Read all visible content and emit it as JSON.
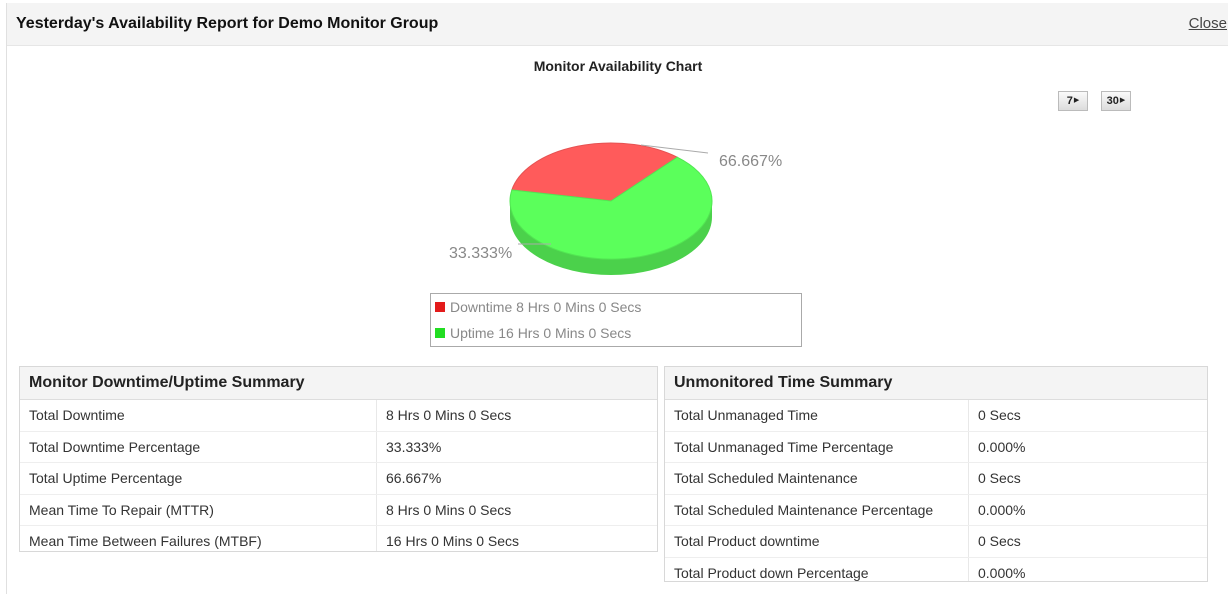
{
  "header": {
    "title": "Yesterday's Availability Report for Demo Monitor Group",
    "close_label": "Close"
  },
  "chart_title": "Monitor Availability Chart",
  "range_buttons": [
    "7",
    "30"
  ],
  "chart_data": {
    "type": "pie",
    "title": "Monitor Availability Chart",
    "slices": [
      {
        "name": "Downtime 8 Hrs 0 Mins 0 Secs",
        "value": 33.333,
        "label": "33.333%",
        "color": "#ff5b5b"
      },
      {
        "name": "Uptime 16 Hrs 0 Mins 0 Secs",
        "value": 66.667,
        "label": "66.667%",
        "color": "#5bff5b"
      }
    ],
    "legend_placement": "bottom"
  },
  "colors": {
    "downtime_legend": "#e31b1b",
    "uptime_legend": "#22dd22"
  },
  "downtime_summary": {
    "title": "Monitor Downtime/Uptime Summary",
    "rows": [
      {
        "label": "Total Downtime",
        "value": "8 Hrs 0 Mins 0 Secs"
      },
      {
        "label": "Total Downtime Percentage",
        "value": "33.333%"
      },
      {
        "label": "Total Uptime Percentage",
        "value": "66.667%"
      },
      {
        "label": "Mean Time To Repair (MTTR)",
        "value": "8 Hrs 0 Mins 0 Secs"
      },
      {
        "label": "Mean Time Between Failures (MTBF)",
        "value": "16 Hrs 0 Mins 0 Secs"
      }
    ]
  },
  "unmonitored_summary": {
    "title": "Unmonitored Time Summary",
    "rows": [
      {
        "label": "Total Unmanaged Time",
        "value": "0 Secs"
      },
      {
        "label": "Total Unmanaged Time Percentage",
        "value": "0.000%"
      },
      {
        "label": "Total Scheduled Maintenance",
        "value": "0 Secs"
      },
      {
        "label": "Total Scheduled Maintenance Percentage",
        "value": "0.000%"
      },
      {
        "label": "Total Product downtime",
        "value": "0 Secs"
      },
      {
        "label": "Total Product down Percentage",
        "value": "0.000%"
      }
    ]
  }
}
